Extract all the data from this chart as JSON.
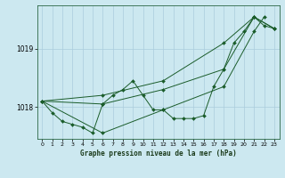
{
  "background_color": "#cce8f0",
  "grid_color": "#aaccdd",
  "line_color": "#1a5c2a",
  "marker_color": "#1a5c2a",
  "xlabel": "Graphe pression niveau de la mer (hPa)",
  "xlim": [
    -0.5,
    23.5
  ],
  "ylim": [
    1017.45,
    1019.75
  ],
  "yticks": [
    1018,
    1019
  ],
  "xticks": [
    0,
    1,
    2,
    3,
    4,
    5,
    6,
    7,
    8,
    9,
    10,
    11,
    12,
    13,
    14,
    15,
    16,
    17,
    18,
    19,
    20,
    21,
    22,
    23
  ],
  "series": [
    {
      "x": [
        0,
        1,
        2,
        3,
        4,
        5,
        6,
        7,
        8,
        9,
        10,
        11,
        12,
        13,
        14,
        15,
        16,
        17,
        18,
        19,
        20,
        21,
        22,
        23
      ],
      "y": [
        1018.1,
        1017.9,
        1017.75,
        1017.7,
        1017.65,
        1017.55,
        1018.05,
        1018.2,
        1018.3,
        1018.45,
        1018.2,
        1017.95,
        1017.95,
        1017.8,
        1017.8,
        1017.8,
        1017.85,
        1018.35,
        1018.65,
        1019.1,
        1019.3,
        1019.55,
        1019.4,
        1019.35
      ]
    },
    {
      "x": [
        0,
        6,
        12,
        18,
        21,
        23
      ],
      "y": [
        1018.1,
        1018.05,
        1018.3,
        1018.65,
        1019.55,
        1019.35
      ]
    },
    {
      "x": [
        0,
        6,
        12,
        18,
        21,
        23
      ],
      "y": [
        1018.1,
        1018.2,
        1018.45,
        1019.1,
        1019.55,
        1019.35
      ]
    },
    {
      "x": [
        0,
        6,
        12,
        18,
        21,
        22
      ],
      "y": [
        1018.1,
        1017.55,
        1017.95,
        1018.35,
        1019.3,
        1019.55
      ]
    }
  ]
}
